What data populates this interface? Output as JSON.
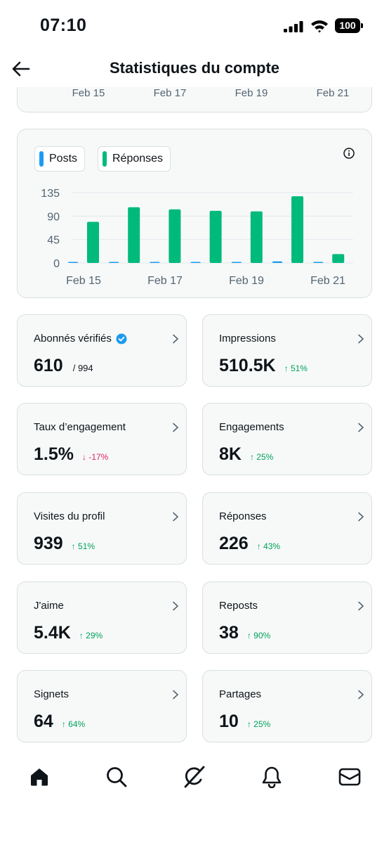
{
  "status_bar": {
    "time": "07:10",
    "battery": "100"
  },
  "header": {
    "title": "Statistiques du compte"
  },
  "top_chart_partial": {
    "x_labels": [
      "Feb 15",
      "Feb 17",
      "Feb 19",
      "Feb 21"
    ]
  },
  "chart_data": {
    "type": "bar",
    "categories": [
      "Feb 15",
      "Feb 16",
      "Feb 17",
      "Feb 18",
      "Feb 19",
      "Feb 20",
      "Feb 21"
    ],
    "x_tick_labels": [
      "Feb 15",
      "Feb 17",
      "Feb 19",
      "Feb 21"
    ],
    "y_ticks": [
      "135",
      "90",
      "45",
      "0"
    ],
    "ylim": [
      0,
      135
    ],
    "grid": true,
    "legend_position": "top-left",
    "series": [
      {
        "name": "Posts",
        "color": "#1d9bf0",
        "values": [
          2,
          1,
          0,
          1,
          2,
          3,
          0
        ]
      },
      {
        "name": "Réponses",
        "color": "#00ba7c",
        "values": [
          79,
          107,
          103,
          100,
          99,
          128,
          17
        ]
      }
    ]
  },
  "stats": [
    {
      "label": "Abonnés vérifiés",
      "value": "610",
      "suffix": "/ 994",
      "change": "",
      "direction": "none",
      "verified": true
    },
    {
      "label": "Impressions",
      "value": "510.5K",
      "suffix": "",
      "change": "↑ 51%",
      "direction": "up"
    },
    {
      "label": "Taux d’engagement",
      "value": "1.5%",
      "suffix": "",
      "change": "↓ -17%",
      "direction": "down"
    },
    {
      "label": "Engagements",
      "value": "8K",
      "suffix": "",
      "change": "↑ 25%",
      "direction": "up"
    },
    {
      "label": "Visites du profil",
      "value": "939",
      "suffix": "",
      "change": "↑ 51%",
      "direction": "up"
    },
    {
      "label": "Réponses",
      "value": "226",
      "suffix": "",
      "change": "↑ 43%",
      "direction": "up"
    },
    {
      "label": "J'aime",
      "value": "5.4K",
      "suffix": "",
      "change": "↑ 29%",
      "direction": "up"
    },
    {
      "label": "Reposts",
      "value": "38",
      "suffix": "",
      "change": "↑ 90%",
      "direction": "up"
    },
    {
      "label": "Signets",
      "value": "64",
      "suffix": "",
      "change": "↑ 64%",
      "direction": "up"
    },
    {
      "label": "Partages",
      "value": "10",
      "suffix": "",
      "change": "↑ 25%",
      "direction": "up"
    }
  ],
  "nav": [
    {
      "icon": "home-icon"
    },
    {
      "icon": "search-icon"
    },
    {
      "icon": "grok-icon"
    },
    {
      "icon": "bell-icon"
    },
    {
      "icon": "mail-icon"
    }
  ]
}
